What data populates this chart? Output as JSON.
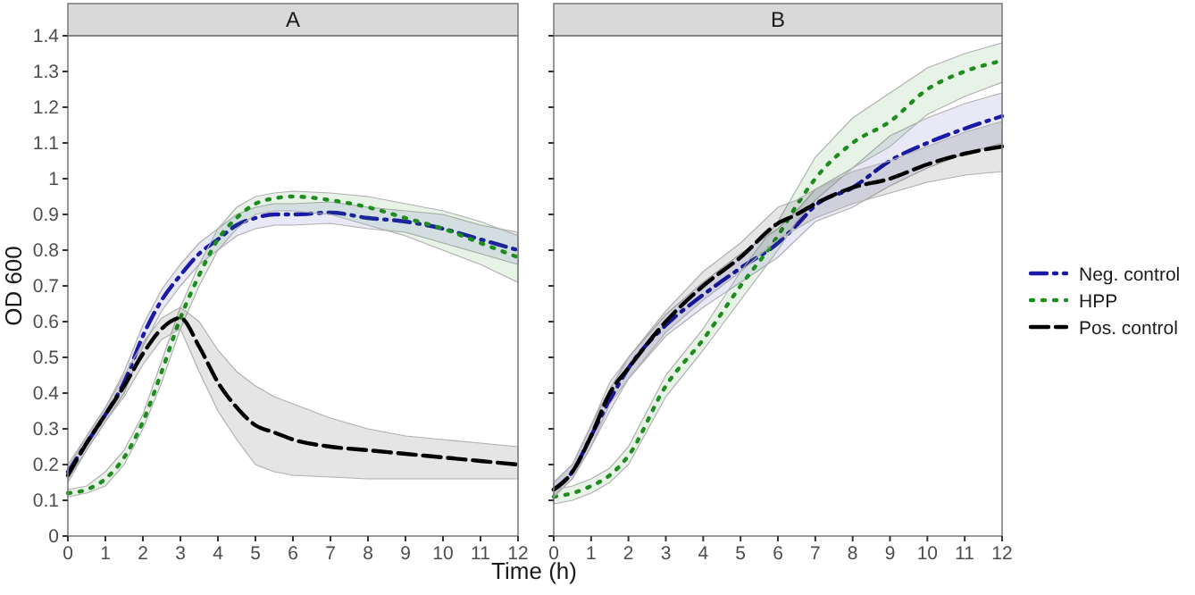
{
  "chart_data": [
    {
      "type": "line",
      "title": "A",
      "xlabel": "Time (h)",
      "ylabel": "OD 600",
      "x": [
        0,
        0.5,
        1,
        1.5,
        2,
        2.5,
        3,
        3.5,
        4,
        4.5,
        5,
        5.5,
        6,
        7,
        8,
        9,
        10,
        11,
        12
      ],
      "xlim": [
        0,
        12
      ],
      "xticks": [
        0,
        1,
        2,
        3,
        4,
        5,
        6,
        7,
        8,
        9,
        10,
        11,
        12
      ],
      "ylim": [
        0,
        1.4
      ],
      "yticks": [
        0.0,
        0.1,
        0.2,
        0.3,
        0.4,
        0.5,
        0.6,
        0.7,
        0.8,
        0.9,
        1.0,
        1.1,
        1.2,
        1.3,
        1.4
      ],
      "grid": false,
      "legend": false,
      "series": [
        {
          "color": "#1a1aa6",
          "line_style": "dashdot",
          "values": [
            0.18,
            0.26,
            0.34,
            0.43,
            0.56,
            0.66,
            0.73,
            0.79,
            0.83,
            0.87,
            0.89,
            0.9,
            0.9,
            0.905,
            0.89,
            0.88,
            0.86,
            0.83,
            0.8
          ],
          "lower": [
            0.16,
            0.24,
            0.32,
            0.4,
            0.53,
            0.63,
            0.7,
            0.76,
            0.8,
            0.84,
            0.86,
            0.87,
            0.87,
            0.875,
            0.86,
            0.85,
            0.82,
            0.79,
            0.76
          ],
          "upper": [
            0.2,
            0.28,
            0.36,
            0.46,
            0.59,
            0.69,
            0.76,
            0.82,
            0.86,
            0.9,
            0.92,
            0.93,
            0.93,
            0.935,
            0.92,
            0.91,
            0.9,
            0.87,
            0.85
          ]
        },
        {
          "color": "#1e8c1e",
          "line_style": "dotted",
          "values": [
            0.12,
            0.13,
            0.16,
            0.22,
            0.32,
            0.46,
            0.61,
            0.73,
            0.83,
            0.89,
            0.93,
            0.945,
            0.95,
            0.94,
            0.92,
            0.89,
            0.86,
            0.82,
            0.78
          ],
          "lower": [
            0.11,
            0.12,
            0.14,
            0.2,
            0.3,
            0.43,
            0.58,
            0.7,
            0.8,
            0.86,
            0.9,
            0.91,
            0.91,
            0.9,
            0.87,
            0.84,
            0.8,
            0.76,
            0.71
          ],
          "upper": [
            0.13,
            0.14,
            0.18,
            0.24,
            0.34,
            0.49,
            0.64,
            0.76,
            0.86,
            0.92,
            0.95,
            0.96,
            0.965,
            0.96,
            0.95,
            0.93,
            0.91,
            0.88,
            0.84
          ]
        },
        {
          "color": "#000000",
          "line_style": "dashed",
          "values": [
            0.17,
            0.26,
            0.34,
            0.42,
            0.51,
            0.58,
            0.61,
            0.53,
            0.43,
            0.36,
            0.31,
            0.29,
            0.27,
            0.25,
            0.24,
            0.23,
            0.22,
            0.21,
            0.2
          ],
          "lower": [
            0.15,
            0.24,
            0.32,
            0.39,
            0.48,
            0.55,
            0.58,
            0.46,
            0.35,
            0.27,
            0.2,
            0.18,
            0.17,
            0.165,
            0.16,
            0.16,
            0.16,
            0.16,
            0.16
          ],
          "upper": [
            0.19,
            0.28,
            0.36,
            0.45,
            0.54,
            0.61,
            0.64,
            0.6,
            0.52,
            0.46,
            0.42,
            0.39,
            0.37,
            0.33,
            0.3,
            0.28,
            0.27,
            0.26,
            0.25
          ]
        }
      ]
    },
    {
      "type": "line",
      "title": "B",
      "x": [
        0,
        0.5,
        1,
        1.5,
        2,
        3,
        4,
        5,
        6,
        6.5,
        7,
        8,
        9,
        10,
        11,
        12
      ],
      "xlim": [
        0,
        12
      ],
      "xticks": [
        0,
        1,
        2,
        3,
        4,
        5,
        6,
        7,
        8,
        9,
        10,
        11,
        12
      ],
      "ylim": [
        0,
        1.4
      ],
      "yticks": [
        0.0,
        0.1,
        0.2,
        0.3,
        0.4,
        0.5,
        0.6,
        0.7,
        0.8,
        0.9,
        1.0,
        1.1,
        1.2,
        1.3,
        1.4
      ],
      "tick_labels": "x",
      "grid": false,
      "legend": "right",
      "series": [
        {
          "name": "Neg. control",
          "color": "#1a1aa6",
          "line_style": "dashdot",
          "values": [
            0.13,
            0.18,
            0.28,
            0.38,
            0.47,
            0.59,
            0.675,
            0.75,
            0.82,
            0.87,
            0.925,
            0.975,
            1.05,
            1.1,
            1.14,
            1.175
          ],
          "lower": [
            0.11,
            0.16,
            0.25,
            0.35,
            0.44,
            0.56,
            0.64,
            0.71,
            0.78,
            0.83,
            0.88,
            0.92,
            0.98,
            1.03,
            1.07,
            1.1
          ],
          "upper": [
            0.15,
            0.2,
            0.31,
            0.41,
            0.5,
            0.62,
            0.71,
            0.79,
            0.86,
            0.91,
            0.97,
            1.03,
            1.12,
            1.17,
            1.21,
            1.24
          ]
        },
        {
          "name": "HPP",
          "color": "#1e8c1e",
          "line_style": "dotted",
          "values": [
            0.11,
            0.12,
            0.14,
            0.17,
            0.225,
            0.42,
            0.55,
            0.7,
            0.84,
            0.925,
            1.0,
            1.1,
            1.16,
            1.25,
            1.3,
            1.33
          ],
          "lower": [
            0.09,
            0.1,
            0.12,
            0.15,
            0.2,
            0.39,
            0.52,
            0.66,
            0.8,
            0.88,
            0.94,
            1.03,
            1.09,
            1.18,
            1.23,
            1.27
          ],
          "upper": [
            0.13,
            0.14,
            0.16,
            0.19,
            0.25,
            0.45,
            0.58,
            0.74,
            0.88,
            0.97,
            1.06,
            1.17,
            1.24,
            1.31,
            1.35,
            1.38
          ]
        },
        {
          "name": "Pos. control",
          "color": "#000000",
          "line_style": "dashed",
          "values": [
            0.13,
            0.18,
            0.28,
            0.4,
            0.47,
            0.6,
            0.7,
            0.78,
            0.875,
            0.9,
            0.93,
            0.975,
            1.0,
            1.04,
            1.07,
            1.09
          ],
          "lower": [
            0.11,
            0.16,
            0.25,
            0.37,
            0.44,
            0.57,
            0.66,
            0.74,
            0.83,
            0.86,
            0.89,
            0.93,
            0.96,
            0.99,
            1.01,
            1.02
          ],
          "upper": [
            0.15,
            0.2,
            0.31,
            0.43,
            0.5,
            0.63,
            0.74,
            0.82,
            0.92,
            0.94,
            0.97,
            1.02,
            1.05,
            1.09,
            1.13,
            1.16
          ]
        }
      ]
    }
  ]
}
